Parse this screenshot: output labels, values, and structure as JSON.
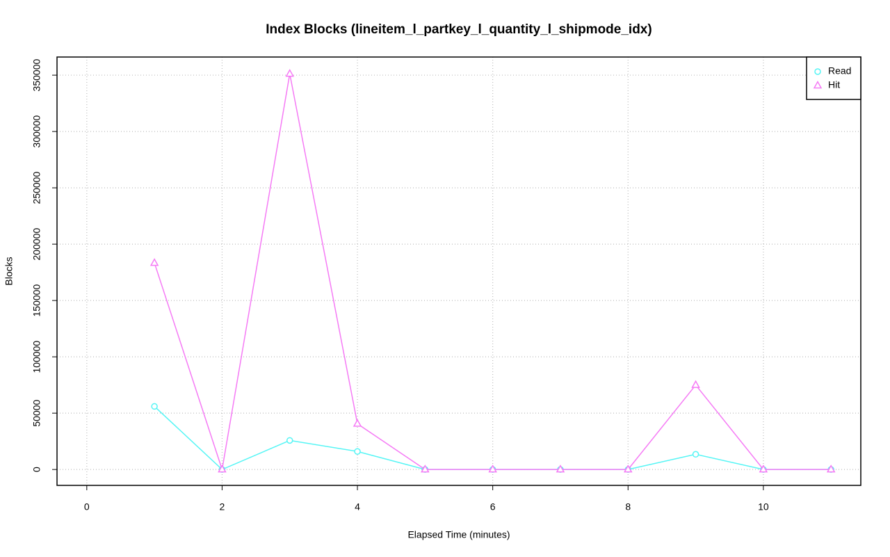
{
  "chart_data": {
    "type": "line",
    "title": "Index Blocks (lineitem_l_partkey_l_quantity_l_shipmode_idx)",
    "x_label": "Elapsed Time (minutes)",
    "y_label": "Blocks",
    "x": [
      1,
      2,
      3,
      4,
      5,
      6,
      7,
      8,
      9,
      10,
      11
    ],
    "series": [
      {
        "name": "Read",
        "color": "#55f5f5",
        "marker": "circle",
        "values": [
          56000,
          0,
          25800,
          16000,
          0,
          0,
          0,
          0,
          13500,
          0,
          0
        ]
      },
      {
        "name": "Hit",
        "color": "#f57af5",
        "marker": "triangle",
        "values": [
          183300,
          0,
          351200,
          40600,
          0,
          0,
          0,
          0,
          75000,
          0,
          0
        ]
      }
    ],
    "xlim": [
      -0.44,
      11.44
    ],
    "xticks": [
      0,
      2,
      4,
      6,
      8,
      10
    ],
    "ylim": [
      -14100,
      366100
    ],
    "yticks": [
      0,
      50000,
      100000,
      150000,
      200000,
      250000,
      300000,
      350000
    ],
    "grid": true,
    "legend_position": "top-right"
  }
}
